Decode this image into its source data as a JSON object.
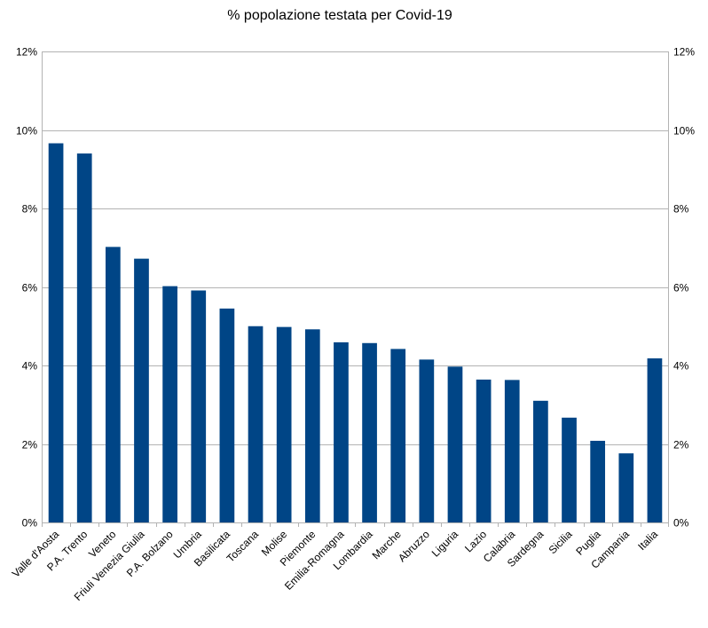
{
  "chart_data": {
    "type": "bar",
    "title": "% popolazione testata per Covid-19",
    "categories": [
      "Valle d'Aosta",
      "P.A. Trento",
      "Veneto",
      "Friuli Venezia Giulia",
      "P.A. Bolzano",
      "Umbria",
      "Basilicata",
      "Toscana",
      "Molise",
      "Piemonte",
      "Emilia-Romagna",
      "Lombardia",
      "Marche",
      "Abruzzo",
      "Liguria",
      "Lazio",
      "Calabria",
      "Sardegna",
      "Sicilia",
      "Puglia",
      "Campania",
      "Italia"
    ],
    "values": [
      9.66,
      9.4,
      7.02,
      6.72,
      6.02,
      5.91,
      5.45,
      5.0,
      4.98,
      4.92,
      4.59,
      4.57,
      4.42,
      4.15,
      3.97,
      3.64,
      3.63,
      3.1,
      2.67,
      2.08,
      1.76,
      4.18
    ],
    "ylim": [
      0,
      12
    ],
    "yticks": [
      0,
      2,
      4,
      6,
      8,
      10,
      12
    ],
    "ytick_labels": [
      "0%",
      "2%",
      "4%",
      "6%",
      "8%",
      "10%",
      "12%"
    ],
    "secondary_axis": true,
    "grid": true,
    "legend": "none",
    "bar_color": "#004586",
    "grid_color": "#b3b3b3",
    "xlabel": "",
    "ylabel": ""
  }
}
